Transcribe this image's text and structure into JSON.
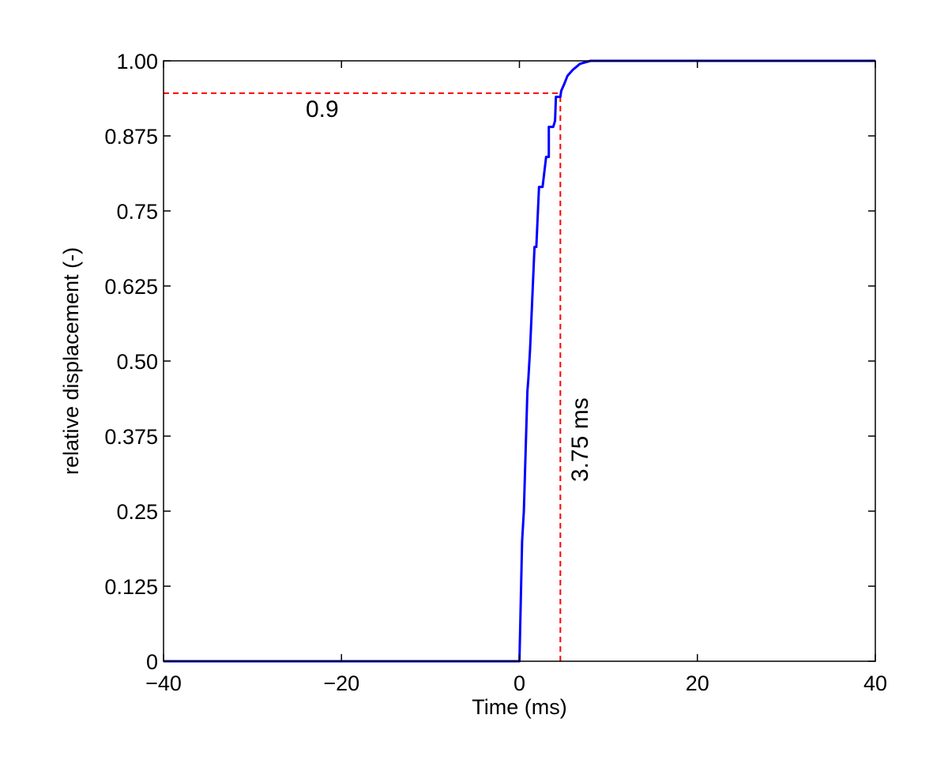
{
  "chart_data": {
    "type": "line",
    "title": "",
    "xlabel": "Time (ms)",
    "ylabel": "relative displacement (-)",
    "xlim": [
      -40,
      40
    ],
    "ylim": [
      0,
      1.0
    ],
    "xticks": [
      -40,
      -20,
      0,
      20,
      40
    ],
    "xtick_labels": [
      "−40",
      "−20",
      "0",
      "20",
      "40"
    ],
    "yticks": [
      0,
      0.125,
      0.25,
      0.375,
      0.5,
      0.625,
      0.75,
      0.875,
      1.0
    ],
    "ytick_labels": [
      "0",
      "0.125",
      "0.25",
      "0.375",
      "0.50",
      "0.625",
      "0.75",
      "0.875",
      "1.00"
    ],
    "grid": false,
    "colors": {
      "series": "#0000ff",
      "reference": "#ff0000"
    },
    "series": [
      {
        "x": [
          -40,
          0,
          0.3,
          0.5,
          0.9,
          1.0,
          1.2,
          1.7,
          1.9,
          2.2,
          2.3,
          2.5,
          2.6,
          2.6,
          3.0,
          3.1,
          3.3,
          3.3,
          3.6,
          3.8,
          4.0,
          4.1,
          4.3,
          4.4,
          4.6,
          4.7,
          5.0,
          5.4,
          6.0,
          6.8,
          7.5,
          8.0,
          40
        ],
        "y": [
          0,
          0,
          0.2,
          0.25,
          0.45,
          0.47,
          0.52,
          0.69,
          0.69,
          0.79,
          0.79,
          0.79,
          0.79,
          0.79,
          0.84,
          0.84,
          0.84,
          0.89,
          0.89,
          0.89,
          0.9,
          0.94,
          0.94,
          0.94,
          0.94,
          0.95,
          0.96,
          0.975,
          0.985,
          0.995,
          0.998,
          1.0,
          1.0
        ]
      }
    ],
    "reference_lines": [
      {
        "axis": "y",
        "value": 0.946,
        "from": -40,
        "to": 4.6,
        "label": "0.9"
      },
      {
        "axis": "x",
        "value": 4.6,
        "from": 0,
        "to": 0.946,
        "label": "3.75 ms"
      }
    ]
  }
}
